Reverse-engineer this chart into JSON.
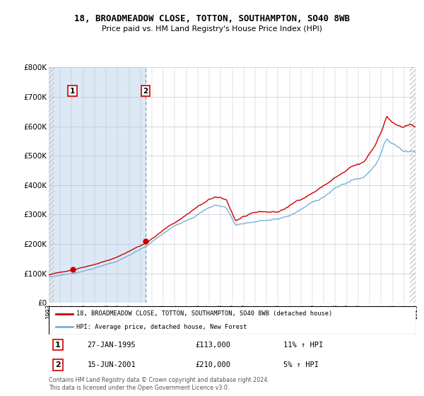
{
  "title": "18, BROADMEADOW CLOSE, TOTTON, SOUTHAMPTON, SO40 8WB",
  "subtitle": "Price paid vs. HM Land Registry's House Price Index (HPI)",
  "legend_label_red": "18, BROADMEADOW CLOSE, TOTTON, SOUTHAMPTON, SO40 8WB (detached house)",
  "legend_label_blue": "HPI: Average price, detached house, New Forest",
  "purchase1_date": "27-JAN-1995",
  "purchase1_price": 113000,
  "purchase1_hpi": "11% ↑ HPI",
  "purchase1_year": 1995.07,
  "purchase2_date": "15-JUN-2001",
  "purchase2_price": 210000,
  "purchase2_hpi": "5% ↑ HPI",
  "purchase2_year": 2001.46,
  "xmin": 1993.0,
  "xmax": 2025.0,
  "ymin": 0,
  "ymax": 800000,
  "yticks": [
    0,
    100000,
    200000,
    300000,
    400000,
    500000,
    600000,
    700000,
    800000
  ],
  "background_color": "#ffffff",
  "grid_color": "#b0b8cc",
  "shading_color": "#dce9f5",
  "red_color": "#cc0000",
  "blue_color": "#7ab0d4",
  "hatch_color": "#c8c8c8",
  "footnote": "Contains HM Land Registry data © Crown copyright and database right 2024.\nThis data is licensed under the Open Government Licence v3.0."
}
